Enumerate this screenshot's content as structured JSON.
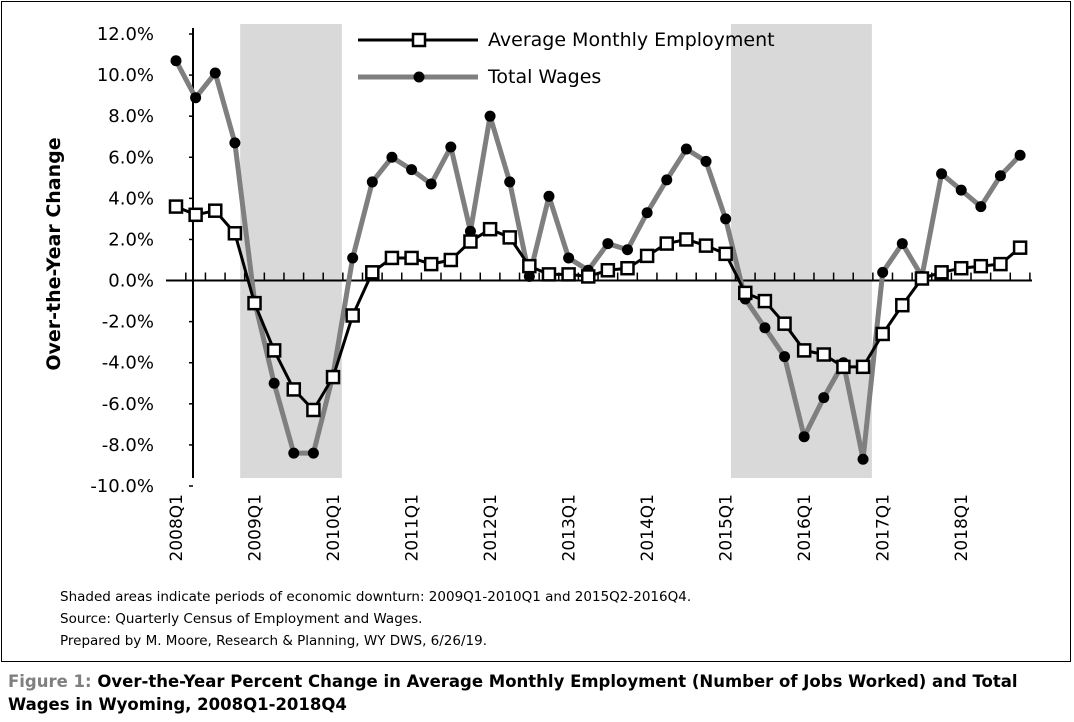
{
  "chart_data": {
    "type": "line",
    "ylabel": "Over-the-Year Change",
    "ylim": [
      -10,
      12
    ],
    "yticks": [
      "12.0%",
      "10.0%",
      "8.0%",
      "6.0%",
      "4.0%",
      "2.0%",
      "0.0%",
      "-2.0%",
      "-4.0%",
      "-6.0%",
      "-8.0%",
      "-10.0%"
    ],
    "ytick_values": [
      12,
      10,
      8,
      6,
      4,
      2,
      0,
      -2,
      -4,
      -6,
      -8,
      -10
    ],
    "x_tick_labels": [
      "2008Q1",
      "2009Q1",
      "2010Q1",
      "2011Q1",
      "2012Q1",
      "2013Q1",
      "2014Q1",
      "2015Q1",
      "2016Q1",
      "2017Q1",
      "2018Q1"
    ],
    "quarters_per_label": 4,
    "n_points": 44,
    "shaded_regions": [
      {
        "start": "2009Q1",
        "end": "2010Q1"
      },
      {
        "start": "2015Q2",
        "end": "2016Q4"
      }
    ],
    "grid": false,
    "legend_position": "top-center",
    "series": [
      {
        "name": "Average Monthly Employment",
        "color": "#000000",
        "marker": "open-square",
        "values": [
          3.6,
          3.2,
          3.4,
          2.3,
          -1.1,
          -3.4,
          -5.3,
          -6.3,
          -4.7,
          -1.7,
          0.4,
          1.1,
          1.1,
          0.8,
          1.0,
          1.9,
          2.5,
          2.1,
          0.7,
          0.3,
          0.3,
          0.2,
          0.5,
          0.6,
          1.2,
          1.8,
          2.0,
          1.7,
          1.3,
          -0.6,
          -1.0,
          -2.1,
          -3.4,
          -3.6,
          -4.2,
          -4.2,
          -2.6,
          -1.2,
          0.1,
          0.4,
          0.6,
          0.7,
          0.8,
          1.6
        ]
      },
      {
        "name": "Total Wages",
        "color": "#7f7f7f",
        "marker": "filled-circle",
        "values": [
          10.7,
          8.9,
          10.1,
          6.7,
          -1.0,
          -5.0,
          -8.4,
          -8.4,
          -4.6,
          1.1,
          4.8,
          6.0,
          5.4,
          4.7,
          6.5,
          2.4,
          8.0,
          4.8,
          0.2,
          4.1,
          1.1,
          0.5,
          1.8,
          1.5,
          3.3,
          4.9,
          6.4,
          5.8,
          3.0,
          -0.9,
          -2.3,
          -3.7,
          -7.6,
          -5.7,
          -4.0,
          -8.7,
          0.4,
          1.8,
          0.2,
          5.2,
          4.4,
          3.6,
          5.1,
          6.1
        ]
      }
    ]
  },
  "notes": [
    "Shaded areas indicate periods of economic downturn: 2009Q1-2010Q1 and 2015Q2-2016Q4.",
    "Source: Quarterly Census of Employment and Wages.",
    "Prepared by M. Moore, Research & Planning, WY DWS, 6/26/19."
  ],
  "caption": {
    "prefix": "Figure 1:",
    "text": "Over-the-Year Percent Change in Average Monthly Employment (Number of Jobs Worked) and Total Wages in Wyoming, 2008Q1-2018Q4"
  }
}
